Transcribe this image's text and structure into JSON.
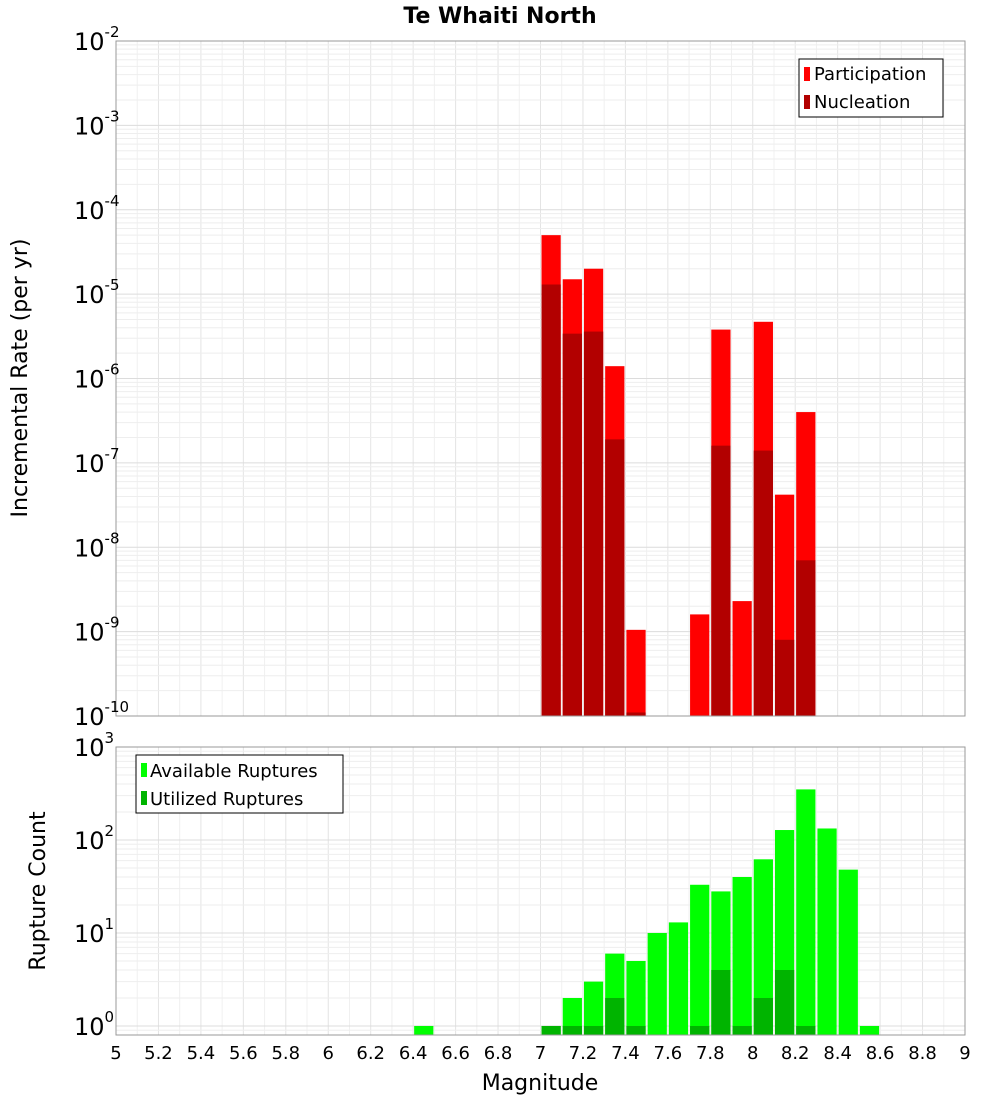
{
  "chart_data": [
    {
      "type": "bar",
      "title": "Te Whaiti North",
      "ylabel": "Incremental Rate (per yr)",
      "xlabel": "",
      "xlim": [
        5,
        9
      ],
      "yscale": "log",
      "ylim": [
        1e-10,
        0.01
      ],
      "ytick_labels": [
        {
          "base": "10",
          "exp": "-10"
        },
        {
          "base": "10",
          "exp": "-9"
        },
        {
          "base": "10",
          "exp": "-8"
        },
        {
          "base": "10",
          "exp": "-7"
        },
        {
          "base": "10",
          "exp": "-6"
        },
        {
          "base": "10",
          "exp": "-5"
        },
        {
          "base": "10",
          "exp": "-4"
        },
        {
          "base": "10",
          "exp": "-3"
        },
        {
          "base": "10",
          "exp": "-2"
        }
      ],
      "grid": true,
      "legend_position": "top-right",
      "bin_width": 0.1,
      "x": [
        7.05,
        7.15,
        7.25,
        7.35,
        7.45,
        7.75,
        7.85,
        7.95,
        8.05,
        8.15,
        8.25
      ],
      "series": [
        {
          "name": "Participation",
          "color": "#ff0000",
          "values": [
            5e-05,
            1.5e-05,
            2e-05,
            1.4e-06,
            1.05e-09,
            1.6e-09,
            3.8e-06,
            2.3e-09,
            4.7e-06,
            4.2e-08,
            4e-07
          ]
        },
        {
          "name": "Nucleation",
          "color": "#b20000",
          "values": [
            1.3e-05,
            3.4e-06,
            3.6e-06,
            1.9e-07,
            1.1e-10,
            null,
            1.6e-07,
            null,
            1.4e-07,
            8e-10,
            7e-09
          ]
        }
      ]
    },
    {
      "type": "bar",
      "title": "",
      "ylabel": "Rupture Count",
      "xlabel": "Magnitude",
      "xlim": [
        5,
        9
      ],
      "yscale": "log",
      "ylim": [
        0.8,
        1000
      ],
      "ytick_labels": [
        {
          "base": "10",
          "exp": "0"
        },
        {
          "base": "10",
          "exp": "1"
        },
        {
          "base": "10",
          "exp": "2"
        },
        {
          "base": "10",
          "exp": "3"
        }
      ],
      "xtick_labels": [
        "5",
        "5.2",
        "5.4",
        "5.6",
        "5.8",
        "6",
        "6.2",
        "6.4",
        "6.6",
        "6.8",
        "7",
        "7.2",
        "7.4",
        "7.6",
        "7.8",
        "8",
        "8.2",
        "8.4",
        "8.6",
        "8.8",
        "9"
      ],
      "grid": true,
      "legend_position": "top-left",
      "bin_width": 0.1,
      "x": [
        6.45,
        7.05,
        7.15,
        7.25,
        7.35,
        7.45,
        7.55,
        7.65,
        7.75,
        7.85,
        7.95,
        8.05,
        8.15,
        8.25,
        8.35,
        8.45,
        8.55
      ],
      "series": [
        {
          "name": "Available Ruptures",
          "color": "#00ff00",
          "values": [
            1,
            1,
            2,
            3,
            6,
            5,
            10,
            13,
            33,
            28,
            40,
            62,
            128,
            350,
            133,
            48,
            1
          ]
        },
        {
          "name": "Utilized Ruptures",
          "color": "#00b400",
          "values": [
            null,
            1,
            1,
            1,
            2,
            1,
            null,
            null,
            1,
            4,
            1,
            2,
            4,
            1,
            null,
            null,
            null
          ]
        }
      ]
    }
  ]
}
